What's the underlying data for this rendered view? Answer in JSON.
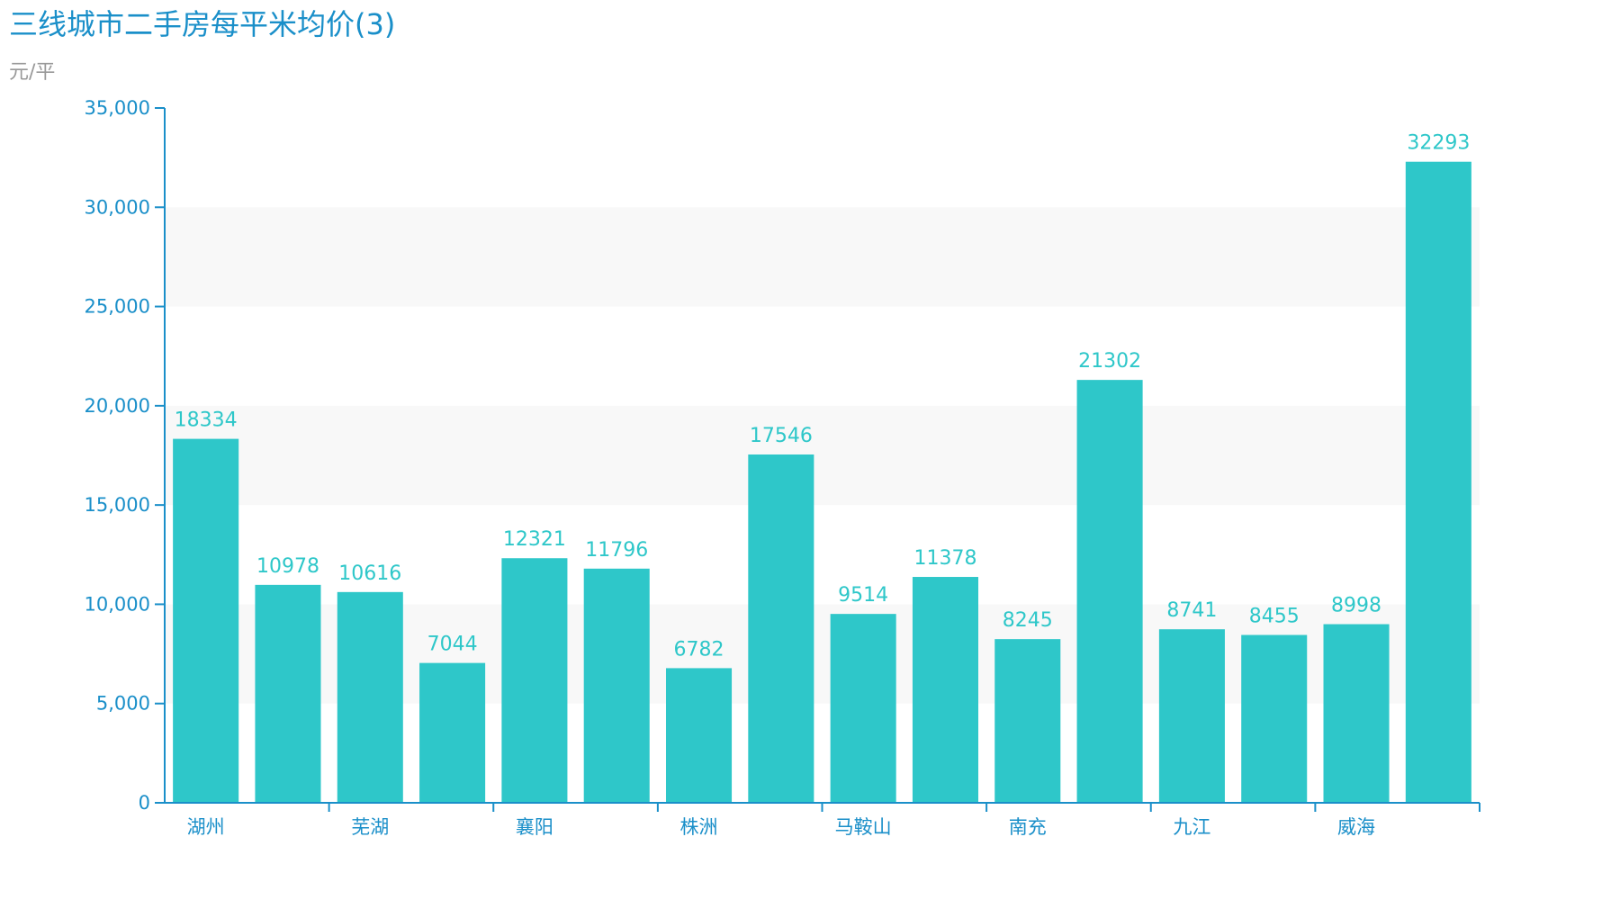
{
  "chart_data": {
    "type": "bar",
    "title": "三线城市二手房每平米均价(3)",
    "ylabel": "元/平",
    "categories": [
      "湖州",
      "",
      "芜湖",
      "",
      "襄阳",
      "",
      "株洲",
      "",
      "马鞍山",
      "",
      "南充",
      "",
      "九江",
      "",
      "威海",
      ""
    ],
    "values": [
      18334,
      10978,
      10616,
      7044,
      12321,
      11796,
      6782,
      17546,
      9514,
      11378,
      8245,
      21302,
      8741,
      8455,
      8998,
      32293
    ],
    "data_labels": [
      "18334",
      "10978",
      "10616",
      "7044",
      "12321",
      "11796",
      "6782",
      "17546",
      "9514",
      "11378",
      "8245",
      "21302",
      "8741",
      "8455",
      "8998",
      "32293"
    ],
    "ylim": [
      0,
      35000
    ],
    "yticks": [
      0,
      5000,
      10000,
      15000,
      20000,
      25000,
      30000,
      35000
    ],
    "ytick_labels": [
      "0",
      "5,000",
      "10,000",
      "15,000",
      "20,000",
      "25,000",
      "30,000",
      "35,000"
    ],
    "grid": "alternating horizontal bands",
    "legend": "none",
    "colors": {
      "bar": "#2ec7c9",
      "axis": "#1a8fc9",
      "band": "#f8f8f8",
      "title": "#1a8fc9",
      "unit": "#999999"
    }
  }
}
